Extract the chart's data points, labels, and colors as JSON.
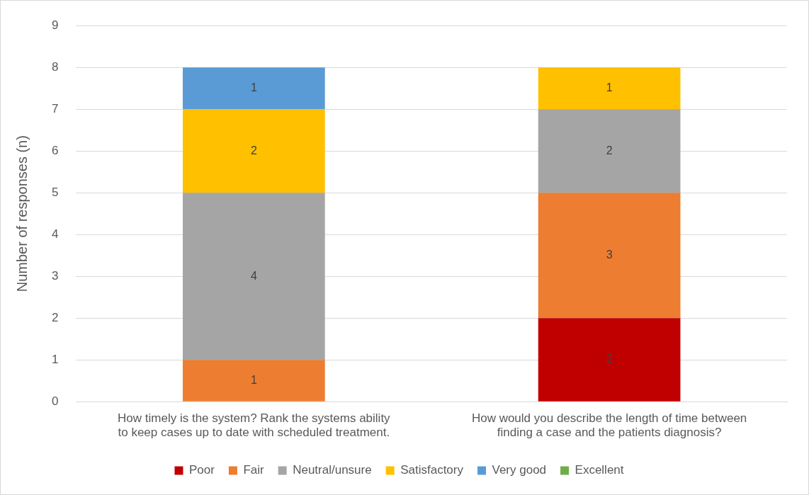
{
  "chart_data": {
    "type": "bar",
    "stacked": true,
    "ylabel": "Number of responses (n)",
    "categories": [
      "How timely is the system? Rank the systems ability to keep cases up to date with scheduled treatment.",
      "How would you describe the length of time between finding a case and the patients diagnosis?"
    ],
    "series": [
      {
        "name": "Poor",
        "color": "#c00000",
        "values": [
          null,
          2
        ]
      },
      {
        "name": "Fair",
        "color": "#ed7d31",
        "values": [
          1,
          3
        ]
      },
      {
        "name": "Neutral/unsure",
        "color": "#a5a5a5",
        "values": [
          4,
          2
        ]
      },
      {
        "name": "Satisfactory",
        "color": "#ffc000",
        "values": [
          2,
          1
        ]
      },
      {
        "name": "Very good",
        "color": "#5b9bd5",
        "values": [
          1,
          null
        ]
      },
      {
        "name": "Excellent",
        "color": "#70ad47",
        "values": [
          null,
          null
        ]
      }
    ],
    "ylim": [
      0,
      9
    ],
    "yticks": [
      0,
      1,
      2,
      3,
      4,
      5,
      6,
      7,
      8,
      9
    ],
    "grid": "y",
    "legend": "bottom",
    "data_labels": true
  }
}
